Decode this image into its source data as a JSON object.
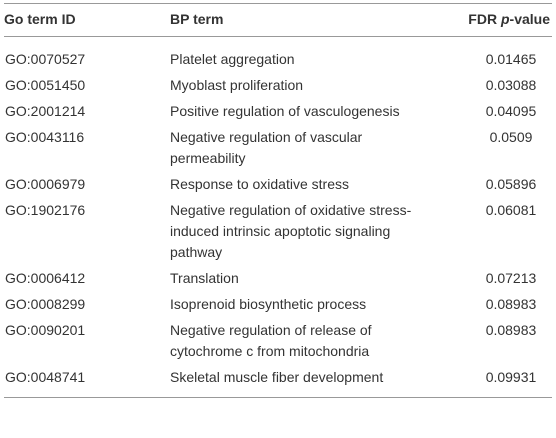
{
  "table": {
    "header": {
      "id": "Go term ID",
      "term": "BP term",
      "fdr": {
        "prefix": "FDR ",
        "italic": "p",
        "suffix": "-value"
      }
    },
    "rows": [
      [
        "GO:0070527",
        "Platelet aggregation",
        "0.01465"
      ],
      [
        "GO:0051450",
        "Myoblast proliferation",
        "0.03088"
      ],
      [
        "GO:2001214",
        "Positive regulation of vasculogenesis",
        "0.04095"
      ],
      [
        "GO:0043116",
        "Negative regulation of vascular permeability",
        "0.0509"
      ],
      [
        "GO:0006979",
        "Response to oxidative stress",
        "0.05896"
      ],
      [
        "GO:1902176",
        "Negative regulation of oxidative stress-induced intrinsic apoptotic signaling pathway",
        "0.06081"
      ],
      [
        "GO:0006412",
        "Translation",
        "0.07213"
      ],
      [
        "GO:0008299",
        "Isoprenoid biosynthetic process",
        "0.08983"
      ],
      [
        "GO:0090201",
        "Negative regulation of release of cytochrome c from mitochondria",
        "0.08983"
      ],
      [
        "GO:0048741",
        "Skeletal muscle fiber development",
        "0.09931"
      ]
    ]
  }
}
